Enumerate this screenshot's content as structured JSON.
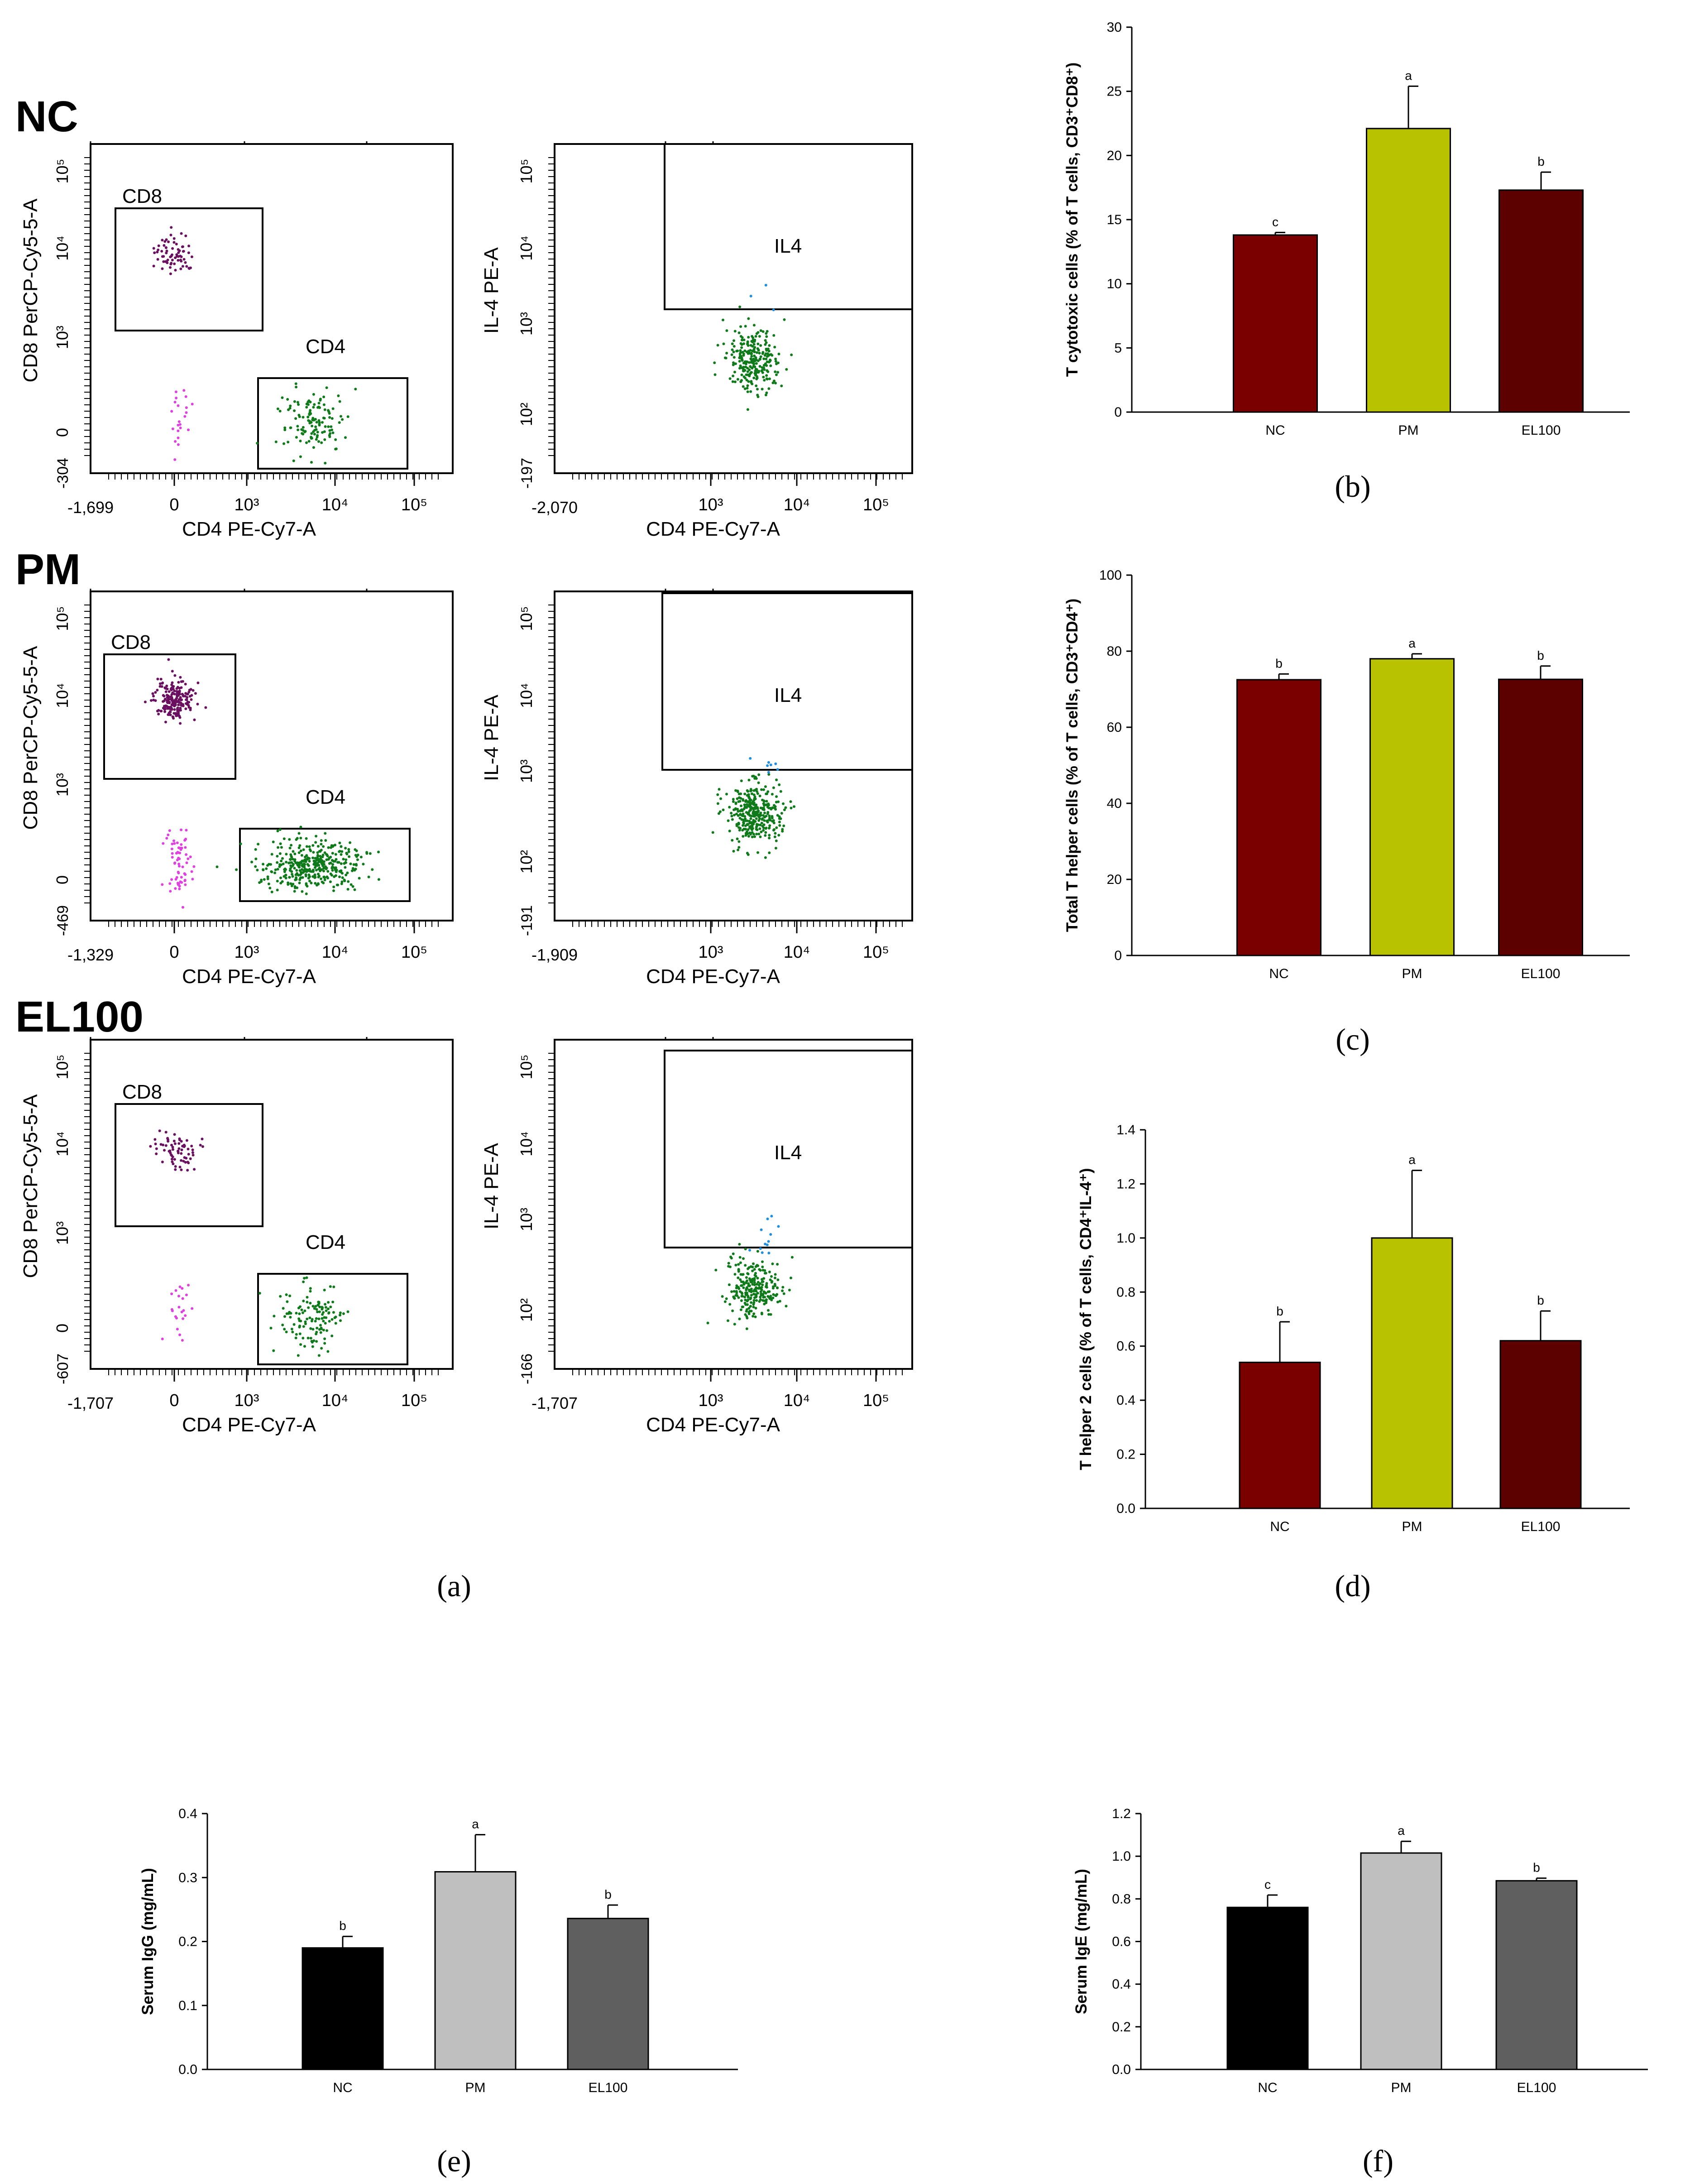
{
  "figure": {
    "panel_labels": {
      "a": "(a)",
      "b": "(b)",
      "c": "(c)",
      "d": "(d)",
      "e": "(e)",
      "f": "(f)"
    }
  },
  "colors": {
    "nc_red": "#7a0000",
    "pm_yellow": "#b8c200",
    "el100_red": "#5c0000",
    "black": "#000000",
    "light_gray": "#bfbfbf",
    "dark_gray": "#5f5f5f",
    "cd8_purple": "#6b0f60",
    "cd8_magenta": "#e040e0",
    "cd4_green": "#0f7a1a",
    "il4_blue": "#1e8fe0"
  },
  "flow": {
    "rows": [
      {
        "group": "NC",
        "left": {
          "ylabel": "CD8 PerCP-Cy5-5-A",
          "xlabel": "CD4 PE-Cy7-A",
          "xmin": "-1,699",
          "ymin": "-304",
          "gate_cd8": "CD8",
          "gate_cd4": "CD4"
        },
        "right": {
          "ylabel": "IL-4 PE-A",
          "xlabel": "CD4 PE-Cy7-A",
          "xmin": "-2,070",
          "ymin": "-197",
          "gate_il4": "IL4"
        }
      },
      {
        "group": "PM",
        "left": {
          "ylabel": "CD8 PerCP-Cy5-5-A",
          "xlabel": "CD4 PE-Cy7-A",
          "xmin": "-1,329",
          "ymin": "-469",
          "gate_cd8": "CD8",
          "gate_cd4": "CD4"
        },
        "right": {
          "ylabel": "IL-4 PE-A",
          "xlabel": "CD4 PE-Cy7-A",
          "xmin": "-1,909",
          "ymin": "-191",
          "gate_il4": "IL4"
        }
      },
      {
        "group": "EL100",
        "left": {
          "ylabel": "CD8 PerCP-Cy5-5-A",
          "xlabel": "CD4 PE-Cy7-A",
          "xmin": "-1,707",
          "ymin": "-607",
          "gate_cd8": "CD8",
          "gate_cd4": "CD4"
        },
        "right": {
          "ylabel": "IL-4 PE-A",
          "xlabel": "CD4 PE-Cy7-A",
          "xmin": "-1,707",
          "ymin": "-166",
          "gate_il4": "IL4"
        }
      }
    ]
  },
  "chart_data": [
    {
      "id": "b",
      "type": "bar",
      "categories": [
        "NC",
        "PM",
        "EL100"
      ],
      "values": [
        13.8,
        22.1,
        17.3
      ],
      "errors": [
        0.2,
        3.3,
        1.4
      ],
      "letters": [
        "c",
        "a",
        "b"
      ],
      "ylabel": "T cytotoxic cells (% of T cells, CD3⁺CD8⁺)",
      "ylim": [
        0,
        30
      ],
      "yticks": [
        0,
        5,
        10,
        15,
        20,
        25,
        30
      ],
      "yticklabels": [
        "0",
        "5",
        "10",
        "15",
        "20",
        "25",
        "30"
      ],
      "colors": [
        "#7a0000",
        "#b8c200",
        "#5c0000"
      ]
    },
    {
      "id": "c",
      "type": "bar",
      "categories": [
        "NC",
        "PM",
        "EL100"
      ],
      "values": [
        72.5,
        78.0,
        72.6
      ],
      "errors": [
        1.5,
        1.3,
        3.5
      ],
      "letters": [
        "b",
        "a",
        "b"
      ],
      "ylabel": "Total T helper cells (% of T cells, CD3⁺CD4⁺)",
      "ylim": [
        0,
        100
      ],
      "yticks": [
        0,
        20,
        40,
        60,
        80,
        100
      ],
      "yticklabels": [
        "0",
        "20",
        "40",
        "60",
        "80",
        "100"
      ],
      "colors": [
        "#7a0000",
        "#b8c200",
        "#5c0000"
      ]
    },
    {
      "id": "d",
      "type": "bar",
      "categories": [
        "NC",
        "PM",
        "EL100"
      ],
      "values": [
        0.54,
        1.0,
        0.62
      ],
      "errors": [
        0.15,
        0.25,
        0.11
      ],
      "letters": [
        "b",
        "a",
        "b"
      ],
      "ylabel": "T helper 2 cells (% of T cells, CD4⁺IL-4⁺)",
      "ylim": [
        0,
        1.4
      ],
      "yticks": [
        0,
        0.2,
        0.4,
        0.6,
        0.8,
        1.0,
        1.2,
        1.4
      ],
      "yticklabels": [
        "0.0",
        "0.2",
        "0.4",
        "0.6",
        "0.8",
        "1.0",
        "1.2",
        "1.4"
      ],
      "colors": [
        "#7a0000",
        "#b8c200",
        "#5c0000"
      ]
    },
    {
      "id": "e",
      "type": "bar",
      "categories": [
        "NC",
        "PM",
        "EL100"
      ],
      "values": [
        0.19,
        0.309,
        0.236
      ],
      "errors": [
        0.018,
        0.058,
        0.021
      ],
      "letters": [
        "b",
        "a",
        "b"
      ],
      "ylabel": "Serum IgG (mg/mL)",
      "ylim": [
        0,
        0.4
      ],
      "yticks": [
        0,
        0.1,
        0.2,
        0.3,
        0.4
      ],
      "yticklabels": [
        "0.0",
        "0.1",
        "0.2",
        "0.3",
        "0.4"
      ],
      "colors": [
        "#000000",
        "#bfbfbf",
        "#5f5f5f"
      ]
    },
    {
      "id": "f",
      "type": "bar",
      "categories": [
        "NC",
        "PM",
        "EL100"
      ],
      "values": [
        0.76,
        1.015,
        0.885
      ],
      "errors": [
        0.058,
        0.055,
        0.012
      ],
      "letters": [
        "c",
        "a",
        "b"
      ],
      "ylabel": "Serum IgE (mg/mL)",
      "ylim": [
        0,
        1.2
      ],
      "yticks": [
        0,
        0.2,
        0.4,
        0.6,
        0.8,
        1.0,
        1.2
      ],
      "yticklabels": [
        "0.0",
        "0.2",
        "0.4",
        "0.6",
        "0.8",
        "1.0",
        "1.2"
      ],
      "colors": [
        "#000000",
        "#bfbfbf",
        "#5f5f5f"
      ]
    }
  ]
}
